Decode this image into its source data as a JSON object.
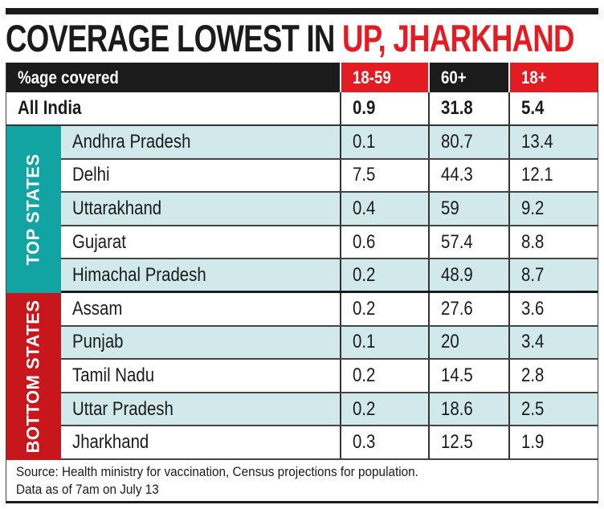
{
  "title": {
    "part1": "COVERAGE LOWEST IN ",
    "highlight": "UP, JHARKHAND"
  },
  "colors": {
    "accent_red": "#e31b23",
    "teal": "#12a3a3",
    "teal_light": "#d1e9ea",
    "dark": "#1b1b1b"
  },
  "chart_data": {
    "type": "table",
    "title": "COVERAGE LOWEST IN UP, JHARKHAND",
    "columns": [
      "%age covered",
      "18-59",
      "60+",
      "18+"
    ],
    "all_india": {
      "label": "All India",
      "values": [
        "0.9",
        "31.8",
        "5.4"
      ]
    },
    "groups": [
      {
        "label": "TOP STATES",
        "rows": [
          {
            "state": "Andhra Pradesh",
            "values": [
              "0.1",
              "80.7",
              "13.4"
            ]
          },
          {
            "state": "Delhi",
            "values": [
              "7.5",
              "44.3",
              "12.1"
            ]
          },
          {
            "state": "Uttarakhand",
            "values": [
              "0.4",
              "59",
              "9.2"
            ]
          },
          {
            "state": "Gujarat",
            "values": [
              "0.6",
              "57.4",
              "8.8"
            ]
          },
          {
            "state": "Himachal Pradesh",
            "values": [
              "0.2",
              "48.9",
              "8.7"
            ]
          }
        ]
      },
      {
        "label": "BOTTOM STATES",
        "rows": [
          {
            "state": "Assam",
            "values": [
              "0.2",
              "27.6",
              "3.6"
            ]
          },
          {
            "state": "Punjab",
            "values": [
              "0.1",
              "20",
              "3.4"
            ]
          },
          {
            "state": "Tamil Nadu",
            "values": [
              "0.2",
              "14.5",
              "2.8"
            ]
          },
          {
            "state": "Uttar Pradesh",
            "values": [
              "0.2",
              "18.6",
              "2.5"
            ]
          },
          {
            "state": "Jharkhand",
            "values": [
              "0.3",
              "12.5",
              "1.9"
            ]
          }
        ]
      }
    ],
    "footer": [
      "Source: Health ministry for vaccination, Census projections for population.",
      "Data as of 7am on July 13"
    ]
  }
}
